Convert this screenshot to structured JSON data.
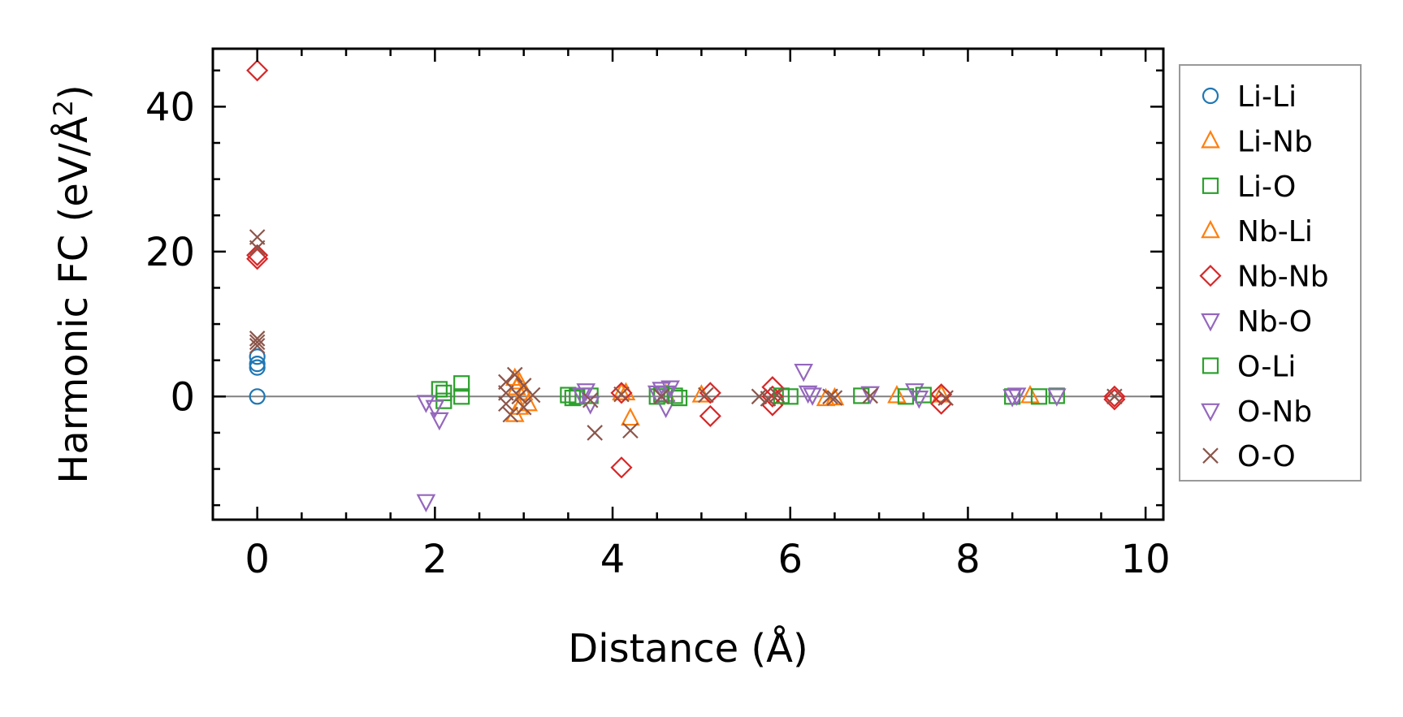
{
  "chart_data": {
    "type": "scatter",
    "xlabel": "Distance (Å)",
    "ylabel_main": "Harmonic FC (eV/Å",
    "ylabel_sup": "2",
    "ylabel_end": ")",
    "xlim": [
      -0.5,
      10.2
    ],
    "ylim": [
      -17,
      48
    ],
    "xticks": [
      0,
      2,
      4,
      6,
      8,
      10
    ],
    "xtick_labels": [
      "0",
      "2",
      "4",
      "6",
      "8",
      "10"
    ],
    "yticks": [
      0,
      20,
      40
    ],
    "ytick_labels": [
      "0",
      "20",
      "40"
    ],
    "zero_line": 0,
    "grid": false,
    "legend_position": "outside-right",
    "series": [
      {
        "name": "Li-Li",
        "marker": "circle",
        "color": "#1f77b4",
        "points": [
          [
            0,
            0
          ],
          [
            0,
            4
          ],
          [
            0,
            4.5
          ],
          [
            0,
            5.5
          ]
        ]
      },
      {
        "name": "Li-Nb",
        "marker": "triangle-up",
        "color": "#ff7f0e",
        "points": [
          [
            2.9,
            2.5
          ],
          [
            2.92,
            1.2
          ],
          [
            2.95,
            -1.5
          ],
          [
            2.9,
            -2.5
          ],
          [
            3.0,
            0.5
          ],
          [
            4.2,
            -3.0
          ],
          [
            4.15,
            0.5
          ],
          [
            4.6,
            0.3
          ],
          [
            5.0,
            0.2
          ],
          [
            6.5,
            -0.2
          ],
          [
            7.2,
            0.1
          ],
          [
            7.7,
            0.2
          ],
          [
            8.7,
            0.1
          ]
        ]
      },
      {
        "name": "Li-O",
        "marker": "square",
        "color": "#2ca02c",
        "points": [
          [
            2.05,
            1.0
          ],
          [
            2.1,
            0.5
          ],
          [
            2.1,
            -0.6
          ],
          [
            2.3,
            1.8
          ],
          [
            2.3,
            0.0
          ],
          [
            3.5,
            0.2
          ],
          [
            3.6,
            0.0
          ],
          [
            3.75,
            0.1
          ],
          [
            4.5,
            0.0
          ],
          [
            4.7,
            0.1
          ],
          [
            6.0,
            0.0
          ],
          [
            6.8,
            0.1
          ],
          [
            7.3,
            0.0
          ],
          [
            8.5,
            0.0
          ],
          [
            8.8,
            0.0
          ],
          [
            9.0,
            0.1
          ]
        ]
      },
      {
        "name": "Nb-Li",
        "marker": "triangle-up",
        "color": "#ff7f0e",
        "points": [
          [
            2.95,
            2.0
          ],
          [
            3.05,
            -1.0
          ],
          [
            4.1,
            0.5
          ],
          [
            6.4,
            -0.3
          ]
        ]
      },
      {
        "name": "Nb-Nb",
        "marker": "diamond",
        "color": "#d62728",
        "points": [
          [
            0,
            45
          ],
          [
            0,
            19
          ],
          [
            0,
            19.5
          ],
          [
            4.1,
            -9.8
          ],
          [
            4.1,
            0.5
          ],
          [
            5.1,
            0.5
          ],
          [
            5.1,
            -2.7
          ],
          [
            5.8,
            1.3
          ],
          [
            5.8,
            -1.2
          ],
          [
            5.8,
            0.0
          ],
          [
            7.7,
            -1.0
          ],
          [
            7.7,
            0.3
          ],
          [
            9.65,
            0.0
          ],
          [
            9.65,
            -0.4
          ]
        ]
      },
      {
        "name": "Nb-O",
        "marker": "triangle-down",
        "color": "#9467bd",
        "points": [
          [
            1.9,
            -14.5
          ],
          [
            1.9,
            -0.8
          ],
          [
            2.0,
            -1.5
          ],
          [
            2.05,
            -3.2
          ],
          [
            3.7,
            0.8
          ],
          [
            3.75,
            -1.0
          ],
          [
            4.55,
            1.0
          ],
          [
            4.6,
            -1.5
          ],
          [
            4.6,
            0.5
          ],
          [
            6.15,
            3.5
          ],
          [
            6.2,
            0.5
          ],
          [
            7.4,
            0.8
          ],
          [
            8.55,
            0.2
          ],
          [
            9.0,
            0.1
          ]
        ]
      },
      {
        "name": "O-Li",
        "marker": "square",
        "color": "#2ca02c",
        "points": [
          [
            3.55,
            -0.2
          ],
          [
            4.55,
            0.3
          ],
          [
            4.75,
            -0.2
          ],
          [
            5.9,
            0.1
          ],
          [
            7.5,
            0.2
          ]
        ]
      },
      {
        "name": "O-Nb",
        "marker": "triangle-down",
        "color": "#9467bd",
        "points": [
          [
            3.65,
            0.2
          ],
          [
            4.5,
            0.5
          ],
          [
            4.65,
            1.2
          ],
          [
            6.25,
            0.2
          ],
          [
            6.9,
            0.4
          ],
          [
            7.45,
            -0.2
          ],
          [
            8.5,
            0.0
          ]
        ]
      },
      {
        "name": "O-O",
        "marker": "x",
        "color": "#8c564b",
        "points": [
          [
            0,
            22
          ],
          [
            0,
            20.5
          ],
          [
            0,
            8
          ],
          [
            0,
            7.5
          ],
          [
            0,
            7
          ],
          [
            2.8,
            2.0
          ],
          [
            2.8,
            0.5
          ],
          [
            2.8,
            -1.0
          ],
          [
            2.85,
            -2.5
          ],
          [
            2.9,
            3.0
          ],
          [
            2.95,
            0.0
          ],
          [
            3.0,
            1.5
          ],
          [
            3.0,
            -1.5
          ],
          [
            3.1,
            0.2
          ],
          [
            3.8,
            -5.0
          ],
          [
            3.75,
            -0.5
          ],
          [
            4.2,
            -4.7
          ],
          [
            4.1,
            0.3
          ],
          [
            4.55,
            0.0
          ],
          [
            5.05,
            0.2
          ],
          [
            5.65,
            0.0
          ],
          [
            5.75,
            -0.3
          ],
          [
            5.85,
            0.2
          ],
          [
            6.45,
            0.0
          ],
          [
            6.5,
            -0.2
          ],
          [
            6.9,
            0.1
          ],
          [
            7.75,
            -0.2
          ],
          [
            9.65,
            0.0
          ]
        ]
      }
    ]
  }
}
